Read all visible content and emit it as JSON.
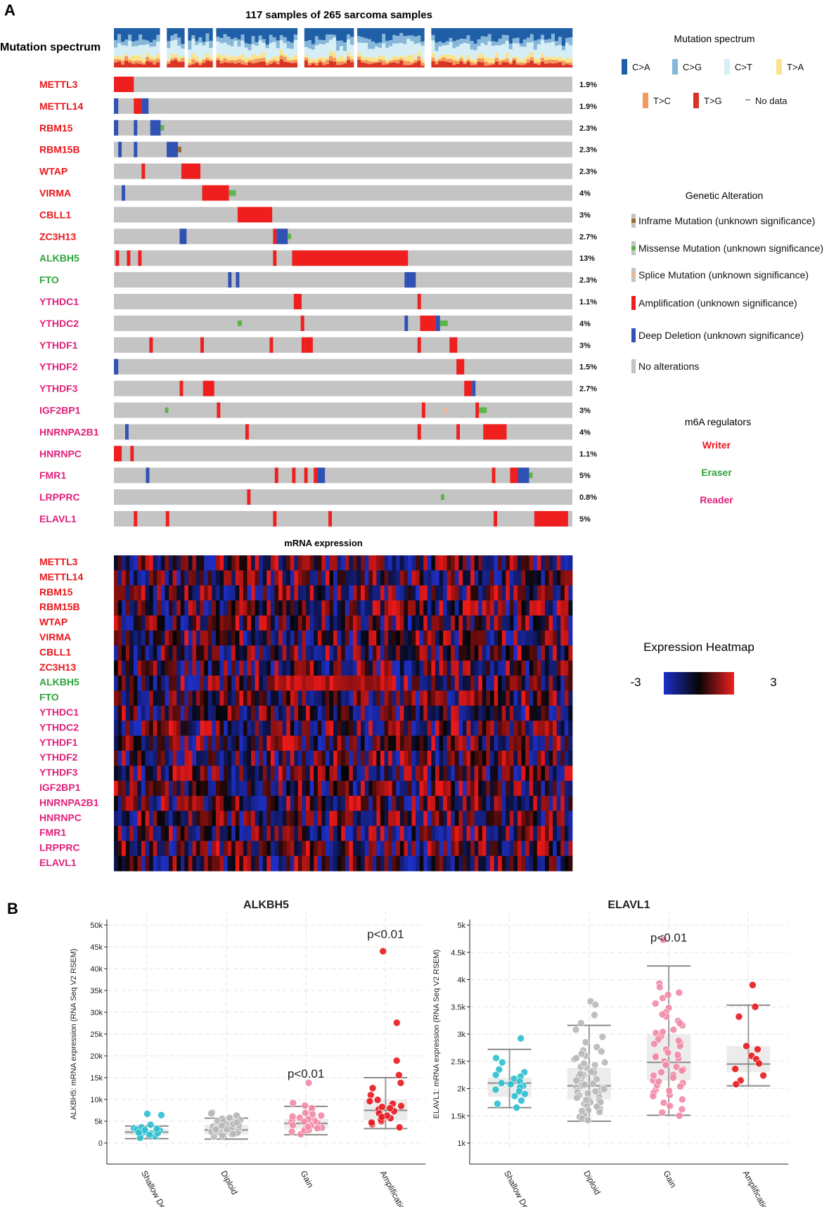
{
  "panel_a": {
    "letter": "A",
    "title": "117 samples of 265 sarcoma samples",
    "spectrum_label": "Mutation spectrum",
    "mrna_title": "mRNA expression",
    "genes": [
      {
        "name": "METTL3",
        "role": "writer",
        "freq": "1.9%"
      },
      {
        "name": "METTL14",
        "role": "writer",
        "freq": "1.9%"
      },
      {
        "name": "RBM15",
        "role": "writer",
        "freq": "2.3%"
      },
      {
        "name": "RBM15B",
        "role": "writer",
        "freq": "2.3%"
      },
      {
        "name": "WTAP",
        "role": "writer",
        "freq": "2.3%"
      },
      {
        "name": "VIRMA",
        "role": "writer",
        "freq": "4%"
      },
      {
        "name": "CBLL1",
        "role": "writer",
        "freq": "3%"
      },
      {
        "name": "ZC3H13",
        "role": "writer",
        "freq": "2.7%"
      },
      {
        "name": "ALKBH5",
        "role": "eraser",
        "freq": "13%"
      },
      {
        "name": "FTO",
        "role": "eraser",
        "freq": "2.3%"
      },
      {
        "name": "YTHDC1",
        "role": "reader",
        "freq": "1.1%"
      },
      {
        "name": "YTHDC2",
        "role": "reader",
        "freq": "4%"
      },
      {
        "name": "YTHDF1",
        "role": "reader",
        "freq": "3%"
      },
      {
        "name": "YTHDF2",
        "role": "reader",
        "freq": "1.5%"
      },
      {
        "name": "YTHDF3",
        "role": "reader",
        "freq": "2.7%"
      },
      {
        "name": "IGF2BP1",
        "role": "reader",
        "freq": "3%"
      },
      {
        "name": "HNRNPA2B1",
        "role": "reader",
        "freq": "4%"
      },
      {
        "name": "HNRNPC",
        "role": "reader",
        "freq": "1.1%"
      },
      {
        "name": "FMR1",
        "role": "reader",
        "freq": "5%"
      },
      {
        "name": "LRPPRC",
        "role": "reader",
        "freq": "0.8%"
      },
      {
        "name": "ELAVL1",
        "role": "reader",
        "freq": "5%"
      }
    ],
    "oncoprint_events": {
      "METTL3": [
        [
          "A",
          0,
          2.3
        ]
      ],
      "METTL14": [
        [
          "D",
          0,
          0.5
        ],
        [
          "A",
          2.3,
          3.2
        ],
        [
          "D",
          3.2,
          4
        ]
      ],
      "RBM15": [
        [
          "D",
          0,
          0.5
        ],
        [
          "D",
          2.3,
          2.7
        ],
        [
          "D",
          4.2,
          5.4
        ],
        [
          "M",
          5.4,
          5.8
        ]
      ],
      "RBM15B": [
        [
          "D",
          0.5,
          0.9
        ],
        [
          "D",
          2.3,
          2.7
        ],
        [
          "D",
          6.1,
          7.4
        ],
        [
          "I",
          7.4,
          7.8
        ]
      ],
      "WTAP": [
        [
          "A",
          3.2,
          3.6
        ],
        [
          "A",
          7.8,
          10
        ]
      ],
      "VIRMA": [
        [
          "D",
          0.9,
          1.3
        ],
        [
          "A",
          10.2,
          13.3
        ],
        [
          "M",
          13.3,
          14.1
        ]
      ],
      "CBLL1": [
        [
          "A",
          14.3,
          18.3
        ]
      ],
      "ZC3H13": [
        [
          "D",
          7.6,
          8.4
        ],
        [
          "A",
          18.4,
          18.8
        ],
        [
          "D",
          18.8,
          20.1
        ],
        [
          "M",
          20.1,
          20.5
        ]
      ],
      "ALKBH5": [
        [
          "A",
          0.2,
          0.6
        ],
        [
          "A",
          1.5,
          1.9
        ],
        [
          "A",
          2.8,
          3.2
        ],
        [
          "A",
          18.4,
          18.8
        ],
        [
          "A",
          20.6,
          34
        ]
      ],
      "FTO": [
        [
          "D",
          13.2,
          13.6
        ],
        [
          "D",
          14.1,
          14.5
        ],
        [
          "D",
          33.6,
          34.9
        ]
      ],
      "YTHDC1": [
        [
          "A",
          20.8,
          21.7
        ],
        [
          "A",
          35.1,
          35.5
        ]
      ],
      "YTHDC2": [
        [
          "M",
          14.3,
          14.8
        ],
        [
          "A",
          21.6,
          22
        ],
        [
          "D",
          33.6,
          34
        ],
        [
          "A",
          35.4,
          37.2
        ],
        [
          "D",
          37.2,
          37.7
        ],
        [
          "M",
          37.7,
          38.6
        ]
      ],
      "YTHDF1": [
        [
          "A",
          4.1,
          4.5
        ],
        [
          "A",
          10,
          10.4
        ],
        [
          "A",
          18,
          18.4
        ],
        [
          "A",
          21.7,
          22.1
        ],
        [
          "A",
          22.1,
          23
        ],
        [
          "A",
          35.1,
          35.5
        ],
        [
          "A",
          38.8,
          39.7
        ]
      ],
      "YTHDF2": [
        [
          "D",
          0,
          0.5
        ],
        [
          "A",
          39.6,
          40.5
        ]
      ],
      "YTHDF3": [
        [
          "A",
          7.6,
          8
        ],
        [
          "A",
          10.3,
          11.6
        ],
        [
          "A",
          40.5,
          41.4
        ],
        [
          "D",
          41.4,
          41.8
        ]
      ],
      "IGF2BP1": [
        [
          "M",
          5.9,
          6.3
        ],
        [
          "A",
          11.9,
          12.3
        ],
        [
          "A",
          35.6,
          36
        ],
        [
          "S",
          38.2,
          38.6
        ],
        [
          "A",
          41.8,
          42.2
        ],
        [
          "M",
          42.2,
          43.1
        ]
      ],
      "HNRNPA2B1": [
        [
          "D",
          1.3,
          1.7
        ],
        [
          "A",
          15.2,
          15.6
        ],
        [
          "A",
          35.1,
          35.5
        ],
        [
          "A",
          39.6,
          40
        ],
        [
          "A",
          42.7,
          45.4
        ]
      ],
      "HNRNPC": [
        [
          "A",
          0,
          0.9
        ],
        [
          "A",
          1.9,
          2.3
        ]
      ],
      "FMR1": [
        [
          "D",
          3.7,
          4.1
        ],
        [
          "A",
          18.6,
          19
        ],
        [
          "A",
          20.6,
          21
        ],
        [
          "A",
          22,
          22.4
        ],
        [
          "A",
          23.1,
          23.5
        ],
        [
          "D",
          23.5,
          24.4
        ],
        [
          "A",
          43.7,
          44.1
        ],
        [
          "A",
          45.8,
          46.7
        ],
        [
          "D",
          46.7,
          48
        ],
        [
          "M",
          48,
          48.4
        ]
      ],
      "LRPPRC": [
        [
          "A",
          15.4,
          15.8
        ],
        [
          "M",
          37.8,
          38.2
        ]
      ],
      "ELAVL1": [
        [
          "A",
          2.3,
          2.7
        ],
        [
          "A",
          6,
          6.4
        ],
        [
          "A",
          18.4,
          18.8
        ],
        [
          "A",
          24.8,
          25.2
        ],
        [
          "A",
          43.9,
          44.3
        ],
        [
          "A",
          48.6,
          52.5
        ]
      ]
    },
    "legend": {
      "spectrum_title": "Mutation spectrum",
      "spectrum_items": [
        {
          "label": "C>A",
          "color": "#1f5fa8"
        },
        {
          "label": "C>G",
          "color": "#86b7d9"
        },
        {
          "label": "C>T",
          "color": "#d6eef6"
        },
        {
          "label": "T>A",
          "color": "#fbe38b"
        },
        {
          "label": "T>C",
          "color": "#f4985c"
        },
        {
          "label": "T>G",
          "color": "#d93326"
        }
      ],
      "no_data_label": "No data",
      "alteration_title": "Genetic Alteration",
      "alteration_items": [
        {
          "label": "Inframe Mutation (unknown significance)",
          "color": "#9a6a2e"
        },
        {
          "label": "Missense Mutation (unknown significance)",
          "color": "#5cb548"
        },
        {
          "label": "Splice Mutation (unknown significance)",
          "color": "#f2b38f"
        },
        {
          "label": "Amplification (unknown significance)",
          "color": "#f01f1f"
        },
        {
          "label": "Deep Deletion (unknown significance)",
          "color": "#3052b4"
        },
        {
          "label": "No alterations",
          "color": "#c4c4c4"
        }
      ],
      "regulators_title": "m6A regulators",
      "writer_label": "Writer",
      "eraser_label": "Eraser",
      "reader_label": "Reader",
      "role_colors": {
        "writer": "#e8171d",
        "eraser": "#2ea43a",
        "reader": "#e0217b"
      },
      "heatmap_title": "Expression Heatmap",
      "heatmap_min": "-3",
      "heatmap_max": "3"
    }
  },
  "panel_b": {
    "letter": "B"
  },
  "chart_data": [
    {
      "type": "scatter",
      "title": "ALKBH5",
      "ylabel": "ALKBH5: mRNA expression (RNA Seq V2 RSEM)",
      "categories": [
        "Shallow Deletion",
        "Diploid",
        "Gain",
        "Amplification"
      ],
      "yticks": [
        "0",
        "5k",
        "10k",
        "15k",
        "20k",
        "25k",
        "30k",
        "35k",
        "40k",
        "45k",
        "50k"
      ],
      "ylim": [
        0,
        50000
      ],
      "colors": [
        "#2bbfcf",
        "#b8b8b8",
        "#f28aa6",
        "#e8171d"
      ],
      "box": [
        {
          "min": 1000,
          "q1": 1800,
          "median": 2500,
          "q3": 3300,
          "max": 3900
        },
        {
          "min": 900,
          "q1": 2000,
          "median": 3000,
          "q3": 4200,
          "max": 5700
        },
        {
          "min": 1900,
          "q1": 3300,
          "median": 4500,
          "q3": 5600,
          "max": 8400
        },
        {
          "min": 3300,
          "q1": 5200,
          "median": 7500,
          "q3": 10000,
          "max": 15000
        }
      ],
      "points": [
        [
          2200,
          2900,
          1800,
          3400,
          2500,
          1500,
          3100,
          2000,
          2700,
          3600,
          4200,
          2300,
          6400,
          6700,
          1200,
          2600,
          3000,
          1900,
          2400,
          3300
        ],
        [
          1500,
          2200,
          2600,
          3100,
          3500,
          4000,
          4400,
          4800,
          5200,
          5600,
          6100,
          6600,
          7000,
          1800,
          2900,
          3800,
          4600,
          5400,
          2400,
          3300,
          4200,
          5000,
          5800,
          2000,
          2700,
          3600,
          4500,
          6300,
          3000,
          3900,
          4800,
          2500,
          3400,
          4300,
          5100,
          1700,
          3200,
          4100,
          4900,
          2800,
          3700,
          4400,
          5300,
          6800,
          2100,
          3100,
          4000,
          4700
        ],
        [
          2000,
          2600,
          3200,
          3800,
          4300,
          4800,
          5300,
          5800,
          6300,
          6900,
          7400,
          8000,
          8600,
          9200,
          13800,
          2900,
          3500,
          4100,
          4600,
          5100,
          5600,
          6100,
          3400,
          4500,
          5500,
          4000,
          4900,
          6600,
          3000,
          3700
        ],
        [
          3600,
          4300,
          5000,
          5700,
          6300,
          7000,
          7700,
          8300,
          9000,
          9900,
          11000,
          12600,
          13800,
          15600,
          18900,
          27600,
          44000,
          5400,
          6800,
          8500,
          4700,
          7300,
          9600,
          6000,
          8000
        ]
      ],
      "annotations": [
        {
          "text": "p<0.01",
          "category": 2,
          "y": 15000
        },
        {
          "text": "p<0.01",
          "category": 3,
          "y": 47000
        }
      ]
    },
    {
      "type": "scatter",
      "title": "ELAVL1",
      "ylabel": "ELAVL1: mRNA expression (RNA Seq V2 RSEM)",
      "categories": [
        "Shallow Deletion",
        "Diploid",
        "Gain",
        "Amplification"
      ],
      "yticks": [
        "1k",
        "1.5k",
        "2k",
        "2.5k",
        "3k",
        "3.5k",
        "4k",
        "4.5k",
        "5k"
      ],
      "ylim": [
        1000,
        5000
      ],
      "colors": [
        "#2bbfcf",
        "#b8b8b8",
        "#f28aa6",
        "#e8171d"
      ],
      "box": [
        {
          "min": 1650,
          "q1": 1850,
          "median": 2100,
          "q3": 2200,
          "max": 2720
        },
        {
          "min": 1400,
          "q1": 1800,
          "median": 2050,
          "q3": 2380,
          "max": 3160
        },
        {
          "min": 1510,
          "q1": 2150,
          "median": 2480,
          "q3": 3000,
          "max": 4250
        },
        {
          "min": 2050,
          "q1": 2300,
          "median": 2450,
          "q3": 2780,
          "max": 3530
        }
      ],
      "points": [
        [
          2920,
          2560,
          2480,
          2350,
          2300,
          2250,
          2220,
          2180,
          2130,
          2100,
          2080,
          2050,
          2020,
          1980,
          1950,
          1900,
          1860,
          1780,
          1720,
          1650
        ],
        [
          3600,
          3540,
          3350,
          3200,
          3080,
          2950,
          2850,
          2760,
          2680,
          2600,
          2540,
          2480,
          2430,
          2380,
          2330,
          2290,
          2250,
          2210,
          2170,
          2140,
          2110,
          2080,
          2050,
          2020,
          1990,
          1960,
          1930,
          1900,
          1870,
          1840,
          1810,
          1780,
          1750,
          1720,
          1690,
          1660,
          1630,
          1600,
          1570,
          1540,
          1510,
          1480,
          1450,
          1420,
          2700,
          2560,
          2400,
          2310,
          2230,
          2150,
          2070,
          1990,
          1910,
          1830,
          1750,
          1670,
          1590,
          2640,
          2460,
          2270,
          2090,
          1950,
          1790
        ],
        [
          4730,
          3930,
          3860,
          3760,
          3660,
          3560,
          3480,
          3400,
          3320,
          3240,
          3160,
          3080,
          3020,
          2960,
          2900,
          2840,
          2780,
          2720,
          2660,
          2600,
          2550,
          2500,
          2450,
          2400,
          2350,
          2300,
          2250,
          2200,
          2150,
          2100,
          2040,
          1980,
          1920,
          1860,
          1800,
          1740,
          1680,
          1620,
          1560,
          1500,
          3720,
          3360,
          3040,
          2820,
          2620,
          2430,
          2240,
          2060,
          1880,
          3200,
          2880,
          2580,
          2330,
          2130,
          1960
        ],
        [
          3900,
          3500,
          3320,
          2780,
          2720,
          2600,
          2540,
          2460,
          2360,
          2240,
          2150,
          2080
        ]
      ],
      "annotations": [
        {
          "text": "p<0.01",
          "category": 2,
          "y": 4700
        }
      ]
    }
  ]
}
